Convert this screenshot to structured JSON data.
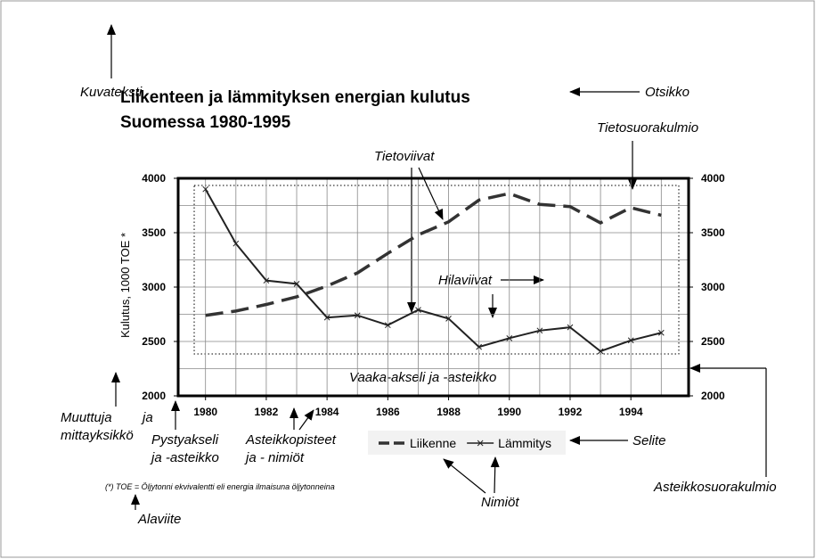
{
  "chart_data": {
    "type": "line",
    "title": [
      "Liikenteen ja lämmityksen energian kulutus",
      "Suomessa 1980-1995"
    ],
    "y_label": "Kulutus, 1000 TOE  *",
    "x": [
      1980,
      1981,
      1982,
      1983,
      1984,
      1985,
      1986,
      1987,
      1988,
      1989,
      1990,
      1991,
      1992,
      1993,
      1994,
      1995
    ],
    "series": [
      {
        "name": "Liikenne",
        "color": "#333333",
        "style": "dashed",
        "values": [
          2740,
          2780,
          2840,
          2910,
          3010,
          3130,
          3310,
          3480,
          3600,
          3800,
          3860,
          3760,
          3740,
          3590,
          3730,
          3660
        ]
      },
      {
        "name": "Lämmitys",
        "color": "#222222",
        "style": "solid",
        "marker": "x",
        "values": [
          3900,
          3400,
          3060,
          3030,
          2720,
          2740,
          2650,
          2790,
          2710,
          2450,
          2530,
          2600,
          2630,
          2410,
          2510,
          2580
        ]
      }
    ],
    "xlim": [
      1979.1,
      1995.9
    ],
    "xticks": [
      1980,
      1982,
      1984,
      1986,
      1988,
      1990,
      1992,
      1994
    ],
    "ylim": [
      2000,
      4000
    ],
    "yticks": [
      2000,
      2500,
      3000,
      3500,
      4000
    ],
    "y2lim": [
      2000,
      4000
    ],
    "y2ticks": [
      2000,
      2500,
      3000,
      3500,
      4000
    ],
    "xgrid": [
      1980,
      1981,
      1982,
      1983,
      1984,
      1985,
      1986,
      1987,
      1988,
      1989,
      1990,
      1991,
      1992,
      1993,
      1994,
      1995
    ],
    "ygrid": [
      2250,
      2500,
      2750,
      3000,
      3250,
      3500,
      3750,
      4000
    ],
    "grid": true,
    "legend": "bottom",
    "footnote": "(*)  TOE = Öljytonni ekvivalentti eli energia ilmaisuna öljytonneina",
    "annotations": [
      [
        "Kuvateksti"
      ],
      [
        "Otsikko"
      ],
      [
        "Tietosuorakulmio"
      ],
      [
        "Tietoviivat"
      ],
      [
        "Hilaviivat"
      ],
      [
        "Vaaka-akseli ja -asteikko"
      ],
      [
        "Muuttuja",
        "ja",
        "mittayksikkö"
      ],
      [
        "Pystyakseli",
        "ja -asteikko"
      ],
      [
        "Asteikkopisteet",
        "ja - nimiöt"
      ],
      [
        "Selite"
      ],
      [
        "Nimiöt"
      ],
      [
        "Asteikkosuorakulmio"
      ],
      [
        "Alaviite"
      ]
    ]
  }
}
